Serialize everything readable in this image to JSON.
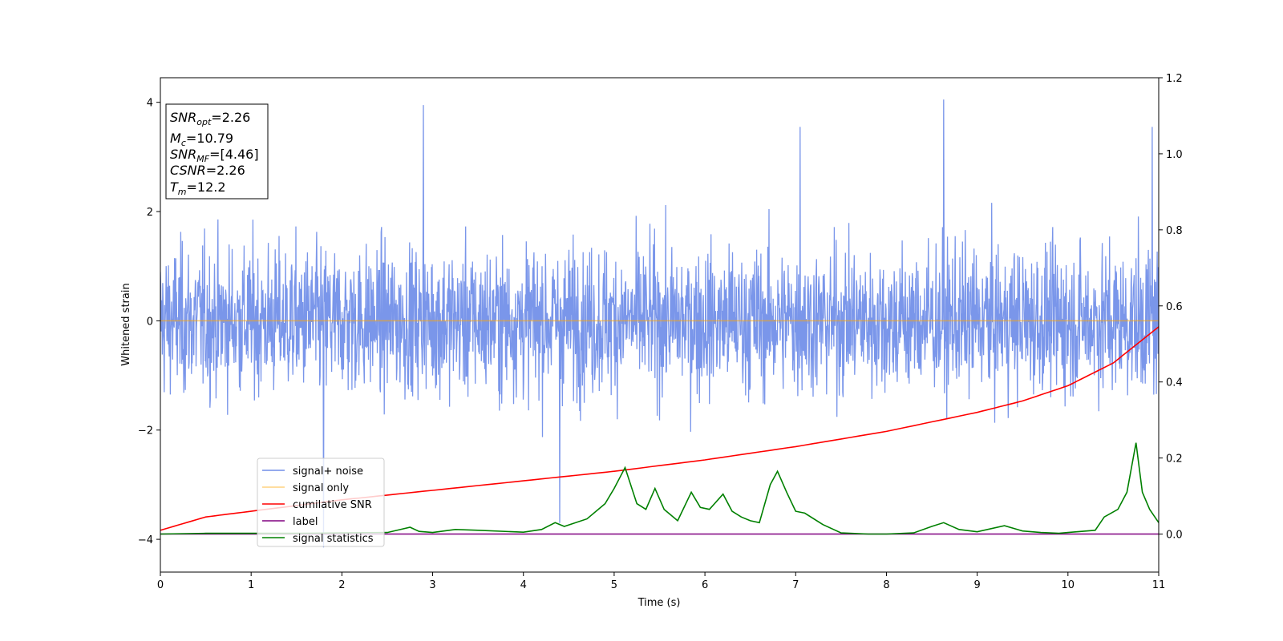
{
  "chart_data": {
    "type": "line",
    "xlabel": "Time (s)",
    "ylabel": "Whitened strain",
    "xlim": [
      0,
      11
    ],
    "ylim": [
      -4.6,
      4.45
    ],
    "y2lim": [
      -0.1,
      1.2
    ],
    "grid": false,
    "legend_placement": "lower-left",
    "x_ticks": [
      "0",
      "1",
      "2",
      "3",
      "4",
      "5",
      "6",
      "7",
      "8",
      "9",
      "10",
      "11"
    ],
    "y_ticks": [
      "4",
      "2",
      "0",
      "−2",
      "−4"
    ],
    "y_tick_values": [
      4,
      2,
      0,
      -2,
      -4
    ],
    "y2_ticks": [
      "1.2",
      "1.0",
      "0.8",
      "0.6",
      "0.4",
      "0.2",
      "0.0"
    ],
    "y2_tick_values": [
      1.2,
      1.0,
      0.8,
      0.6,
      0.4,
      0.2,
      0.0
    ],
    "annotation": {
      "snr_opt": {
        "base": "SNR",
        "sub": "opt",
        "value": "=2.26"
      },
      "mc": {
        "base": "M",
        "sub": "c",
        "value": "=10.79"
      },
      "snr_mf": {
        "base": "SNR",
        "sub": "MF",
        "value": "=[4.46]"
      },
      "csnr": {
        "base": "CSNR",
        "value": "=2.26"
      },
      "tm": {
        "base": "T",
        "sub": "m",
        "value": "=12.2"
      }
    },
    "series": [
      {
        "name": "signal+ noise",
        "axis": "left",
        "color": "#4169e1",
        "description_noise_amplitude": "approx. ±2.5 typical, peaks ±4",
        "peaks": [
          {
            "x": 2.9,
            "y": 3.95
          },
          {
            "x": 8.63,
            "y": 4.05
          },
          {
            "x": 1.8,
            "y": -4.15
          },
          {
            "x": 4.4,
            "y": -3.7
          },
          {
            "x": 7.05,
            "y": 3.55
          },
          {
            "x": 10.93,
            "y": 3.55
          }
        ]
      },
      {
        "name": "signal only",
        "axis": "left",
        "color": "#ffa500",
        "x": [
          0,
          11
        ],
        "y": [
          0,
          0
        ]
      },
      {
        "name": "cumilative SNR",
        "axis": "right",
        "color": "#ff0000",
        "x": [
          0,
          0.5,
          1,
          2,
          3,
          4,
          5,
          6,
          7,
          8,
          9,
          9.5,
          10,
          10.5,
          11
        ],
        "y": [
          0.01,
          0.045,
          0.06,
          0.09,
          0.115,
          0.14,
          0.165,
          0.195,
          0.23,
          0.27,
          0.32,
          0.35,
          0.39,
          0.45,
          0.545
        ]
      },
      {
        "name": "label",
        "axis": "right",
        "color": "#800080",
        "x": [
          0,
          11
        ],
        "y": [
          0,
          0
        ]
      },
      {
        "name": "signal statistics",
        "axis": "right",
        "color": "#008000",
        "x": [
          0,
          0.5,
          1,
          1.5,
          2,
          2.5,
          2.75,
          2.85,
          3,
          3.25,
          3.5,
          4,
          4.2,
          4.35,
          4.45,
          4.7,
          4.9,
          5.0,
          5.12,
          5.25,
          5.35,
          5.45,
          5.55,
          5.7,
          5.85,
          5.95,
          6.05,
          6.2,
          6.3,
          6.4,
          6.5,
          6.6,
          6.72,
          6.8,
          6.9,
          7.0,
          7.1,
          7.3,
          7.5,
          7.8,
          8.0,
          8.3,
          8.5,
          8.63,
          8.8,
          9.0,
          9.3,
          9.5,
          9.7,
          9.9,
          10.0,
          10.3,
          10.4,
          10.55,
          10.65,
          10.75,
          10.82,
          10.9,
          11.0
        ],
        "y": [
          0.0,
          0.002,
          0.002,
          0.002,
          0.003,
          0.004,
          0.018,
          0.007,
          0.004,
          0.012,
          0.01,
          0.005,
          0.012,
          0.03,
          0.02,
          0.04,
          0.08,
          0.12,
          0.175,
          0.08,
          0.065,
          0.12,
          0.065,
          0.035,
          0.11,
          0.07,
          0.065,
          0.105,
          0.06,
          0.045,
          0.035,
          0.03,
          0.13,
          0.165,
          0.11,
          0.06,
          0.055,
          0.025,
          0.003,
          0.0,
          0.0,
          0.003,
          0.02,
          0.03,
          0.012,
          0.006,
          0.022,
          0.008,
          0.004,
          0.002,
          0.004,
          0.01,
          0.045,
          0.065,
          0.11,
          0.24,
          0.11,
          0.065,
          0.03
        ]
      }
    ]
  }
}
